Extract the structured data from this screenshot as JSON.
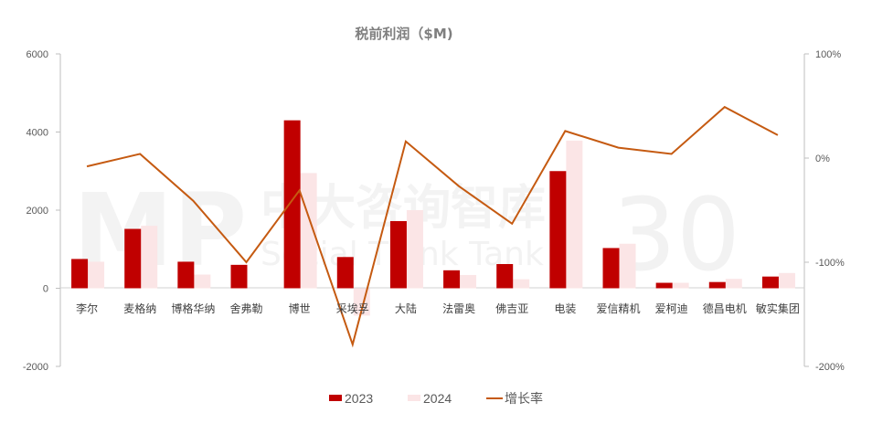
{
  "chart_data": {
    "type": "bar+line",
    "title": "税前利润（$M)",
    "xlabel": "",
    "ylabel": "",
    "categories": [
      "李尔",
      "麦格纳",
      "博格华纳",
      "舍弗勒",
      "博世",
      "采埃孚",
      "大陆",
      "法雷奥",
      "佛吉亚",
      "电装",
      "爱信精机",
      "爱柯迪",
      "德昌电机",
      "敏实集团"
    ],
    "series": [
      {
        "name": "2023",
        "type": "bar",
        "axis": "left",
        "color": "#c00000",
        "values": [
          750,
          1520,
          680,
          600,
          4300,
          800,
          1720,
          460,
          620,
          3000,
          1030,
          140,
          160,
          300
        ]
      },
      {
        "name": "2024",
        "type": "bar",
        "axis": "left",
        "color": "#fbe5e6",
        "values": [
          680,
          1600,
          350,
          0,
          2950,
          -700,
          2000,
          340,
          230,
          3780,
          1140,
          140,
          240,
          390
        ]
      },
      {
        "name": "增长率",
        "type": "line",
        "axis": "right",
        "color": "#c55a11",
        "values": [
          -8,
          4,
          -41,
          -100,
          -31,
          -179,
          16,
          -27,
          -63,
          26,
          10,
          4,
          49,
          22
        ]
      }
    ],
    "ylim": [
      -2000,
      6000
    ],
    "y_ticks": [
      "6000",
      "4000",
      "2000",
      "0",
      "-2000"
    ],
    "y2lim": [
      -200,
      100
    ],
    "y2_ticks": [
      "100%",
      "0%",
      "-100%",
      "-200%"
    ],
    "grid": false,
    "legend_position": "bottom"
  },
  "legend": [
    {
      "label": "2023",
      "color": "#c00000",
      "kind": "box"
    },
    {
      "label": "2024",
      "color": "#fbe5e6",
      "kind": "box"
    },
    {
      "label": "增长率",
      "color": "#c55a11",
      "kind": "line"
    }
  ],
  "watermark": {
    "main": "MP",
    "cn": "中大咨询智库",
    "en": "Social Think Tank",
    "num": "30"
  }
}
